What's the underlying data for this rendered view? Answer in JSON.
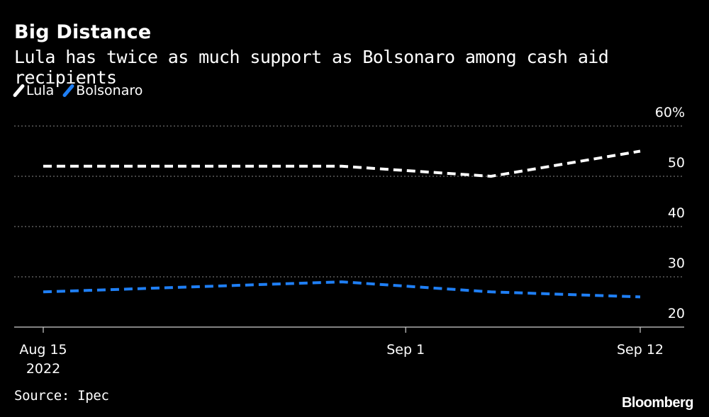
{
  "header": {
    "title": "Big Distance",
    "subtitle": "Lula has twice as much support as Bolsonaro among cash aid recipients"
  },
  "legend": [
    {
      "label": "Lula",
      "color": "#ffffff"
    },
    {
      "label": "Bolsonaro",
      "color": "#1f7ff5"
    }
  ],
  "footer": {
    "source": "Source: Ipec",
    "brand": "Bloomberg"
  },
  "chart_data": {
    "type": "line",
    "x_ticks": [
      {
        "date": "2022-08-15",
        "label": "Aug 15",
        "sublabel": "2022"
      },
      {
        "date": "2022-09-01",
        "label": "Sep 1",
        "sublabel": ""
      },
      {
        "date": "2022-09-12",
        "label": "Sep 12",
        "sublabel": ""
      }
    ],
    "y_ticks": [
      20,
      30,
      40,
      50,
      60
    ],
    "y_unit": "%",
    "ylim": [
      20,
      60
    ],
    "grid": true,
    "line_style": "dashed",
    "series": [
      {
        "name": "Lula",
        "color": "#ffffff",
        "points": [
          {
            "x": "2022-08-15",
            "y": 52
          },
          {
            "x": "2022-08-29",
            "y": 52
          },
          {
            "x": "2022-09-05",
            "y": 50
          },
          {
            "x": "2022-09-12",
            "y": 55
          }
        ]
      },
      {
        "name": "Bolsonaro",
        "color": "#1f7ff5",
        "points": [
          {
            "x": "2022-08-15",
            "y": 27
          },
          {
            "x": "2022-08-29",
            "y": 29
          },
          {
            "x": "2022-09-05",
            "y": 27
          },
          {
            "x": "2022-09-12",
            "y": 26
          }
        ]
      }
    ]
  }
}
